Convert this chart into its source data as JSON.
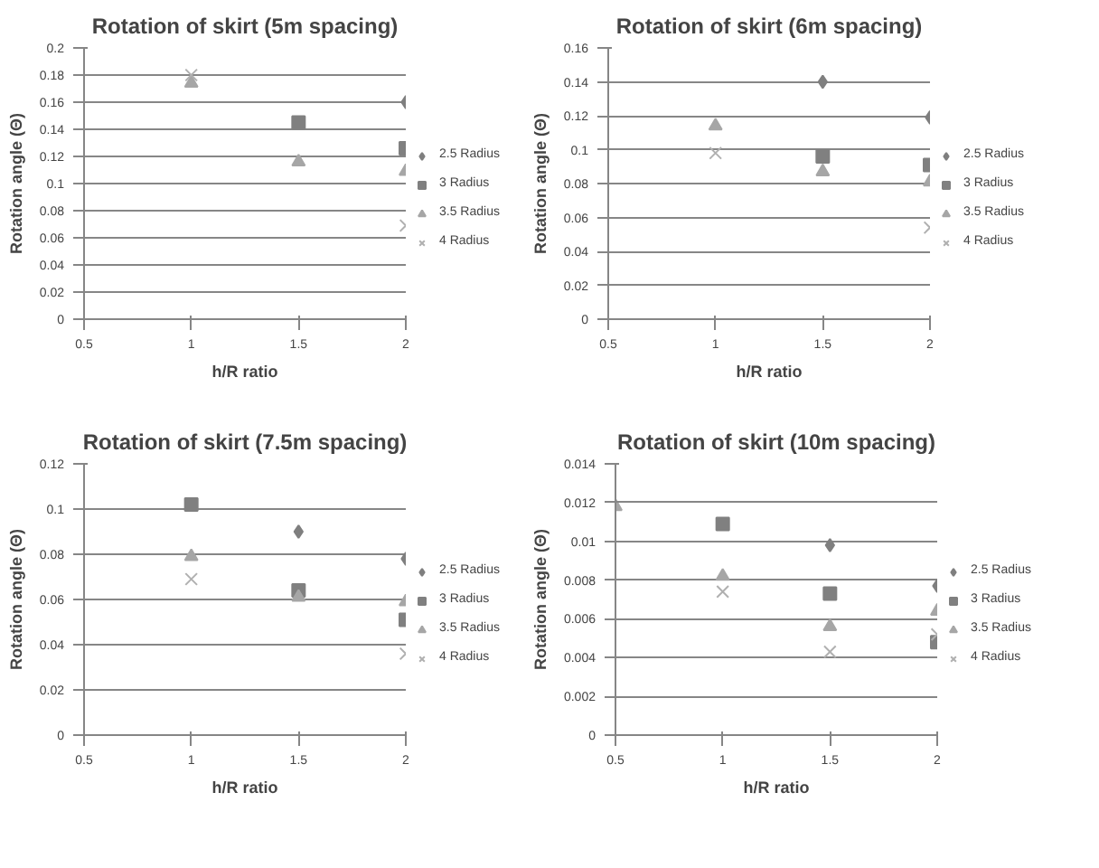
{
  "chart_data": [
    {
      "type": "scatter",
      "title": "Rotation of skirt (5m spacing)",
      "xlabel": "h/R ratio",
      "ylabel": "Rotation angle (Θ)",
      "xlim": [
        0.5,
        2
      ],
      "xticks": [
        0.5,
        1,
        1.5,
        2
      ],
      "ylim": [
        0,
        0.2
      ],
      "yticks": [
        0,
        0.02,
        0.04,
        0.06,
        0.08,
        0.1,
        0.12,
        0.14,
        0.16,
        0.18,
        0.2
      ],
      "grid": "y",
      "legend": "right",
      "x": [
        1,
        1.5,
        2
      ],
      "series": [
        {
          "name": "2.5 Radius",
          "color": "#7f7f7f",
          "marker": "diamond",
          "values": [
            null,
            null,
            0.16
          ]
        },
        {
          "name": "3 Radius",
          "color": "#808080",
          "marker": "square",
          "values": [
            null,
            0.145,
            0.126
          ]
        },
        {
          "name": "3.5 Radius",
          "color": "#a6a6a6",
          "marker": "triangle",
          "values": [
            0.174,
            0.116,
            0.109
          ]
        },
        {
          "name": "4 Radius",
          "color": "#b0b0b0",
          "marker": "cross",
          "values": [
            0.18,
            null,
            0.069
          ]
        }
      ]
    },
    {
      "type": "scatter",
      "title": "Rotation of skirt (6m spacing)",
      "xlabel": "h/R ratio",
      "ylabel": "Rotation angle (Θ)",
      "xlim": [
        0.5,
        2
      ],
      "xticks": [
        0.5,
        1,
        1.5,
        2
      ],
      "ylim": [
        0,
        0.16
      ],
      "yticks": [
        0,
        0.02,
        0.04,
        0.06,
        0.08,
        0.1,
        0.12,
        0.14,
        0.16
      ],
      "grid": "y",
      "legend": "right",
      "x": [
        1,
        1.5,
        2
      ],
      "series": [
        {
          "name": "2.5 Radius",
          "color": "#7f7f7f",
          "marker": "diamond",
          "values": [
            null,
            0.14,
            0.119
          ]
        },
        {
          "name": "3 Radius",
          "color": "#808080",
          "marker": "square",
          "values": [
            null,
            0.096,
            0.091
          ]
        },
        {
          "name": "3.5 Radius",
          "color": "#a6a6a6",
          "marker": "triangle",
          "values": [
            0.114,
            0.087,
            0.081
          ]
        },
        {
          "name": "4 Radius",
          "color": "#b0b0b0",
          "marker": "cross",
          "values": [
            0.098,
            null,
            0.054
          ]
        }
      ]
    },
    {
      "type": "scatter",
      "title": "Rotation of skirt (7.5m spacing)",
      "xlabel": "h/R ratio",
      "ylabel": "Rotation angle (Θ)",
      "xlim": [
        0.5,
        2
      ],
      "xticks": [
        0.5,
        1,
        1.5,
        2
      ],
      "ylim": [
        0,
        0.12
      ],
      "yticks": [
        0,
        0.02,
        0.04,
        0.06,
        0.08,
        0.1,
        0.12
      ],
      "grid": "y",
      "legend": "right",
      "x": [
        1,
        1.5,
        2
      ],
      "series": [
        {
          "name": "2.5 Radius",
          "color": "#7f7f7f",
          "marker": "diamond",
          "values": [
            null,
            0.09,
            0.078
          ]
        },
        {
          "name": "3 Radius",
          "color": "#808080",
          "marker": "square",
          "values": [
            0.102,
            0.064,
            0.051
          ]
        },
        {
          "name": "3.5 Radius",
          "color": "#a6a6a6",
          "marker": "triangle",
          "values": [
            0.079,
            0.061,
            0.059
          ]
        },
        {
          "name": "4 Radius",
          "color": "#b0b0b0",
          "marker": "cross",
          "values": [
            0.069,
            null,
            0.036
          ]
        }
      ]
    },
    {
      "type": "scatter",
      "title": "Rotation of skirt (10m spacing)",
      "xlabel": "h/R ratio",
      "ylabel": "Rotation angle (Θ)",
      "xlim": [
        0.5,
        2
      ],
      "xticks": [
        0.5,
        1,
        1.5,
        2
      ],
      "ylim": [
        0,
        0.014
      ],
      "yticks": [
        0,
        0.002,
        0.004,
        0.006,
        0.008,
        0.01,
        0.012,
        0.014
      ],
      "grid": "y",
      "legend": "right",
      "x": [
        0.5,
        1,
        1.5,
        2
      ],
      "series": [
        {
          "name": "2.5 Radius",
          "color": "#7f7f7f",
          "marker": "diamond",
          "values": [
            null,
            null,
            0.0098,
            0.0077
          ]
        },
        {
          "name": "3 Radius",
          "color": "#808080",
          "marker": "square",
          "values": [
            null,
            0.0109,
            0.0073,
            0.0048
          ]
        },
        {
          "name": "3.5 Radius",
          "color": "#a6a6a6",
          "marker": "triangle",
          "values": [
            0.0118,
            0.0082,
            0.0056,
            0.0064
          ]
        },
        {
          "name": "4 Radius",
          "color": "#b0b0b0",
          "marker": "cross",
          "values": [
            null,
            0.0074,
            0.0043,
            0.0052
          ]
        }
      ]
    }
  ]
}
